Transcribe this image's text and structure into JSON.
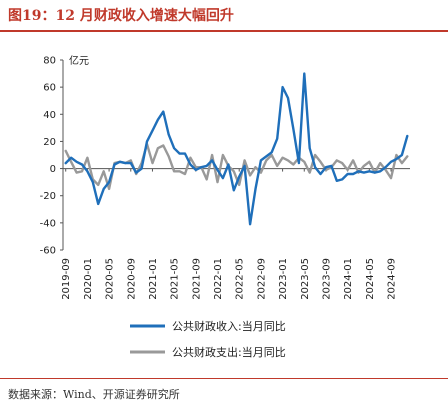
{
  "figure": {
    "title": "图19：12 月财政收入增速大幅回升",
    "source": "数据来源：Wind、开源证券研究所"
  },
  "colors": {
    "series1": "#1f6fba",
    "series2": "#999999",
    "accent": "#c0392b"
  },
  "chart_data": {
    "type": "line",
    "title": "",
    "xlabel": "",
    "ylabel": "亿元",
    "ylim": [
      -60,
      80
    ],
    "yticks": [
      -60,
      -40,
      -20,
      0,
      20,
      40,
      60,
      80
    ],
    "grid": false,
    "legend_position": "bottom",
    "xtick_labels": [
      "2019-09",
      "2020-01",
      "2020-05",
      "2020-09",
      "2021-01",
      "2021-05",
      "2021-09",
      "2022-01",
      "2022-05",
      "2022-09",
      "2023-01",
      "2023-05",
      "2023-09",
      "2024-01",
      "2024-05",
      "2024-09"
    ],
    "x": [
      "2019-09",
      "2019-10",
      "2019-11",
      "2019-12",
      "2020-01",
      "2020-02",
      "2020-03",
      "2020-04",
      "2020-05",
      "2020-06",
      "2020-07",
      "2020-08",
      "2020-09",
      "2020-10",
      "2020-11",
      "2020-12",
      "2021-01",
      "2021-02",
      "2021-03",
      "2021-04",
      "2021-05",
      "2021-06",
      "2021-07",
      "2021-08",
      "2021-09",
      "2021-10",
      "2021-11",
      "2021-12",
      "2022-01",
      "2022-02",
      "2022-03",
      "2022-04",
      "2022-05",
      "2022-06",
      "2022-07",
      "2022-08",
      "2022-09",
      "2022-10",
      "2022-11",
      "2022-12",
      "2023-01",
      "2023-02",
      "2023-03",
      "2023-04",
      "2023-05",
      "2023-06",
      "2023-07",
      "2023-08",
      "2023-09",
      "2023-10",
      "2023-11",
      "2023-12",
      "2024-01",
      "2024-02",
      "2024-03",
      "2024-04",
      "2024-05",
      "2024-06",
      "2024-07",
      "2024-08",
      "2024-09",
      "2024-10",
      "2024-11",
      "2024-12"
    ],
    "series": [
      {
        "name": "公共财政收入:当月同比",
        "values": [
          4,
          8,
          5,
          3,
          -2,
          -10,
          -26,
          -15,
          -10,
          3,
          5,
          4,
          4,
          -3,
          0,
          20,
          28,
          36,
          42,
          25,
          15,
          11,
          11,
          3,
          -1,
          1,
          2,
          6,
          -1,
          -7,
          3,
          -16,
          -6,
          2,
          -41,
          -15,
          6,
          9,
          12,
          22,
          60,
          52,
          29,
          4,
          70,
          15,
          1,
          -4,
          1,
          2,
          -9,
          -8,
          -4,
          -4,
          -2,
          -3,
          -2,
          -3,
          -2,
          1,
          5,
          7,
          10,
          24
        ]
      },
      {
        "name": "公共财政支出:当月同比",
        "values": [
          13,
          5,
          -3,
          -2,
          8,
          -8,
          -12,
          -2,
          -15,
          4,
          5,
          4,
          6,
          -4,
          4,
          18,
          4,
          15,
          17,
          9,
          -2,
          -2,
          -4,
          8,
          1,
          1,
          -8,
          10,
          -10,
          10,
          2,
          -2,
          -12,
          6,
          -5,
          1,
          -3,
          6,
          10,
          2,
          8,
          6,
          3,
          8,
          5,
          -3,
          10,
          5,
          -1,
          1,
          6,
          4,
          -1,
          6,
          -3,
          2,
          5,
          -3,
          4,
          -1,
          -7,
          10,
          4,
          9
        ]
      }
    ]
  }
}
